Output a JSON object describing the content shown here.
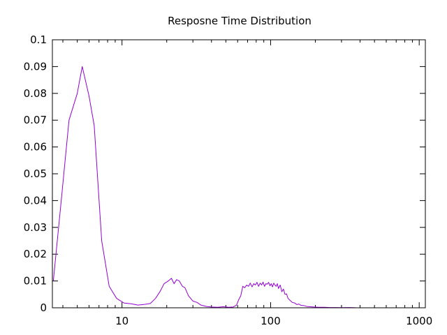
{
  "chart_data": {
    "type": "line",
    "title": "Resposne Time Distribution",
    "xlabel": "",
    "ylabel": "",
    "x_scale": "log",
    "xlim": [
      3.4,
      1100
    ],
    "ylim": [
      0,
      0.1
    ],
    "x_tick_labels": [
      {
        "value": 10,
        "label": "10"
      },
      {
        "value": 100,
        "label": "100"
      },
      {
        "value": 1000,
        "label": "1000"
      }
    ],
    "y_tick_labels": [
      {
        "value": 0,
        "label": "0"
      },
      {
        "value": 0.01,
        "label": "0.01"
      },
      {
        "value": 0.02,
        "label": "0.02"
      },
      {
        "value": 0.03,
        "label": "0.03"
      },
      {
        "value": 0.04,
        "label": "0.04"
      },
      {
        "value": 0.05,
        "label": "0.05"
      },
      {
        "value": 0.06,
        "label": "0.06"
      },
      {
        "value": 0.07,
        "label": "0.07"
      },
      {
        "value": 0.08,
        "label": "0.08"
      },
      {
        "value": 0.09,
        "label": "0.09"
      },
      {
        "value": 0.1,
        "label": "0.1"
      }
    ],
    "grid": false,
    "legend": "none",
    "series": [
      {
        "color": "#9400d3",
        "points": [
          [
            3.45,
            0.01
          ],
          [
            3.9,
            0.04
          ],
          [
            4.4,
            0.07
          ],
          [
            5.0,
            0.08
          ],
          [
            5.4,
            0.09
          ],
          [
            6.0,
            0.079
          ],
          [
            6.5,
            0.068
          ],
          [
            7.3,
            0.025
          ],
          [
            8.2,
            0.008
          ],
          [
            9.2,
            0.0035
          ],
          [
            10.3,
            0.0018
          ],
          [
            11.5,
            0.0015
          ],
          [
            12.8,
            0.001
          ],
          [
            14.3,
            0.0013
          ],
          [
            15.5,
            0.0016
          ],
          [
            16.8,
            0.0035
          ],
          [
            18.0,
            0.006
          ],
          [
            19.2,
            0.009
          ],
          [
            20.5,
            0.01
          ],
          [
            21.5,
            0.011
          ],
          [
            22.4,
            0.009
          ],
          [
            23.3,
            0.0105
          ],
          [
            24.3,
            0.01
          ],
          [
            25.5,
            0.008
          ],
          [
            26.5,
            0.0075
          ],
          [
            28.0,
            0.0045
          ],
          [
            30.0,
            0.0025
          ],
          [
            32.0,
            0.002
          ],
          [
            34.0,
            0.001
          ],
          [
            37.0,
            0.0005
          ],
          [
            40.0,
            0.0003
          ],
          [
            44.0,
            0.0002
          ],
          [
            48.0,
            0.0004
          ],
          [
            52.0,
            0.0002
          ],
          [
            56.0,
            0.0003
          ],
          [
            59.0,
            0.001
          ],
          [
            61.0,
            0.003
          ],
          [
            63.0,
            0.0045
          ],
          [
            65.0,
            0.008
          ],
          [
            67.0,
            0.0075
          ],
          [
            69.0,
            0.0085
          ],
          [
            71.0,
            0.008
          ],
          [
            73.0,
            0.0092
          ],
          [
            75.0,
            0.0078
          ],
          [
            77.0,
            0.009
          ],
          [
            79.0,
            0.0085
          ],
          [
            81.0,
            0.0095
          ],
          [
            83.0,
            0.008
          ],
          [
            85.0,
            0.0092
          ],
          [
            87.0,
            0.0085
          ],
          [
            89.0,
            0.0096
          ],
          [
            91.0,
            0.008
          ],
          [
            93.0,
            0.009
          ],
          [
            95.0,
            0.0088
          ],
          [
            97.0,
            0.0095
          ],
          [
            99.0,
            0.0082
          ],
          [
            101.0,
            0.009
          ],
          [
            103.0,
            0.0078
          ],
          [
            105.0,
            0.0092
          ],
          [
            107.0,
            0.0085
          ],
          [
            109.0,
            0.008
          ],
          [
            111.0,
            0.009
          ],
          [
            113.0,
            0.0072
          ],
          [
            116.0,
            0.0085
          ],
          [
            119.0,
            0.006
          ],
          [
            122.0,
            0.007
          ],
          [
            125.0,
            0.005
          ],
          [
            128.0,
            0.0052
          ],
          [
            131.0,
            0.0035
          ],
          [
            135.0,
            0.0028
          ],
          [
            140.0,
            0.002
          ],
          [
            145.0,
            0.0018
          ],
          [
            150.0,
            0.0012
          ],
          [
            155.0,
            0.0014
          ],
          [
            160.0,
            0.0009
          ],
          [
            168.0,
            0.0008
          ],
          [
            175.0,
            0.0005
          ],
          [
            185.0,
            0.0004
          ],
          [
            195.0,
            0.0003
          ],
          [
            210.0,
            0.0002
          ],
          [
            230.0,
            0.0002
          ],
          [
            250.0,
            0.0001
          ],
          [
            275.0,
            0.0001
          ],
          [
            300.0,
            5e-05
          ],
          [
            340.0,
            0.0001
          ],
          [
            380.0,
            0.0
          ]
        ]
      }
    ]
  }
}
